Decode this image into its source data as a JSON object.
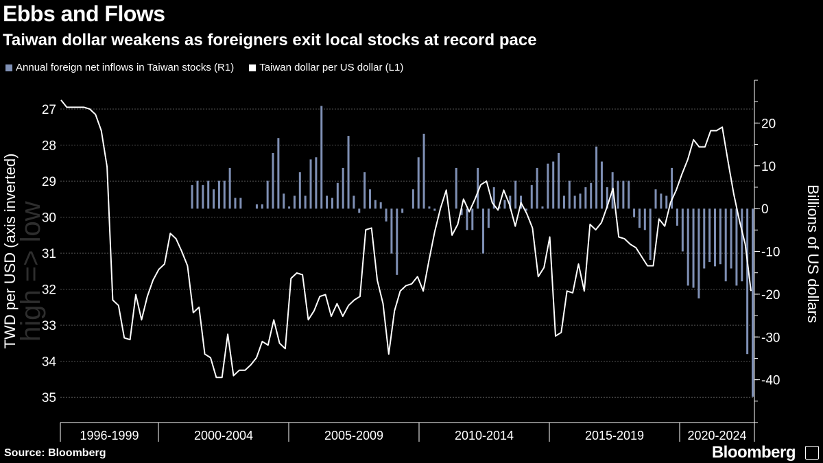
{
  "chart_data": {
    "type": "bar+line",
    "title": "Ebbs and Flows",
    "subtitle": "Taiwan dollar weakens as foreigners exit local stocks at record pace",
    "legend": [
      {
        "label": "Annual foreign net inflows in Taiwan stocks (R1)",
        "color": "#7f90b5"
      },
      {
        "label": "Taiwan dollar per US dollar (L1)",
        "color": "#ffffff"
      }
    ],
    "left_axis": {
      "label": "TWD per USD (axis inverted)",
      "ticks": [
        27,
        28,
        29,
        30,
        31,
        32,
        33,
        34,
        35
      ],
      "range": [
        26.2,
        35.7
      ],
      "inverted": true
    },
    "right_axis": {
      "label": "Billions of US dollars",
      "ticks": [
        20,
        10,
        0,
        -10,
        -20,
        -30,
        -40
      ],
      "range": [
        -50,
        30
      ]
    },
    "watermark": "high => low",
    "x_groups": [
      "1996-1999",
      "2000-2004",
      "2005-2009",
      "2010-2014",
      "2015-2019",
      "2020-2024"
    ],
    "bars": [
      0,
      0,
      0,
      0,
      0,
      0,
      0,
      0,
      0,
      0,
      0,
      0,
      0,
      0,
      0,
      0,
      0,
      0,
      0,
      0,
      0,
      0,
      0,
      0,
      5.5,
      6.5,
      5.5,
      6.5,
      4.5,
      6.5,
      6.5,
      9.5,
      2.5,
      2.5,
      0,
      0,
      1,
      1,
      6.5,
      13,
      16.5,
      3.5,
      0.5,
      3,
      8.5,
      3,
      11.5,
      12,
      24,
      3,
      2.5,
      6,
      9.5,
      17,
      3,
      -1,
      8.5,
      4.5,
      2,
      1.5,
      -3,
      -10.5,
      -15.5,
      -1,
      0,
      4.5,
      12,
      17.5,
      0.5,
      -0.5,
      0,
      0,
      0,
      9.5,
      -1.5,
      -5,
      -5,
      9.5,
      -10.5,
      -4.5,
      5,
      0.5,
      2,
      3,
      6.5,
      3,
      -0.5,
      5.5,
      9.5,
      0.5,
      10.5,
      11,
      13,
      3,
      6.5,
      3,
      3.5,
      5,
      6,
      14.5,
      11,
      5,
      8.5,
      6.5,
      6.5,
      6.5,
      -2,
      -4.5,
      -5,
      -12,
      4.5,
      3.5,
      3,
      9.5,
      -4,
      -10,
      -18,
      -18.5,
      -21,
      -14,
      -12.5,
      -13.5,
      -13,
      -17,
      -14,
      -18,
      -17,
      -34,
      -44
    ],
    "line": [
      26.75,
      26.95,
      26.95,
      26.95,
      26.95,
      27,
      27.15,
      27.6,
      28.6,
      32.3,
      32.45,
      33.35,
      33.4,
      32.15,
      32.85,
      32.2,
      31.75,
      31.45,
      31.3,
      30.45,
      30.6,
      30.95,
      31.35,
      32.65,
      32.5,
      33.8,
      33.9,
      34.45,
      34.45,
      33.25,
      34.4,
      34.25,
      34.25,
      34.1,
      33.9,
      33.45,
      33.55,
      32.85,
      33.5,
      33.65,
      31.7,
      31.55,
      31.6,
      32.85,
      32.6,
      32.2,
      32.15,
      32.75,
      32.4,
      32.75,
      32.45,
      32.3,
      32.2,
      30.35,
      30.3,
      31.75,
      32.4,
      33.8,
      32.6,
      32.05,
      31.9,
      31.85,
      31.65,
      32.05,
      31.2,
      30.4,
      29.75,
      29.25,
      30.5,
      30.2,
      29.5,
      29.85,
      29.5,
      29.1,
      29,
      29.6,
      29.8,
      29.25,
      29.65,
      30.25,
      29.6,
      29.9,
      30.3,
      31.65,
      31.4,
      30.55,
      33.3,
      33.2,
      32.05,
      32.1,
      31.3,
      32.05,
      30.2,
      30.35,
      30.15,
      29.7,
      29.2,
      30.55,
      30.6,
      30.75,
      30.85,
      31.1,
      31.35,
      31.35,
      30.05,
      30.25,
      29.6,
      29.25,
      28.8,
      28.4,
      27.85,
      28.05,
      28.05,
      27.6,
      27.6,
      27.5,
      28.45,
      29.35,
      30.1,
      30.75,
      32.05
    ],
    "colors": {
      "bars": "#7f90b5",
      "line": "#ffffff",
      "grid": "#555555",
      "background": "#000000"
    }
  },
  "footer": {
    "source": "Source: Bloomberg",
    "brand": "Bloomberg"
  }
}
